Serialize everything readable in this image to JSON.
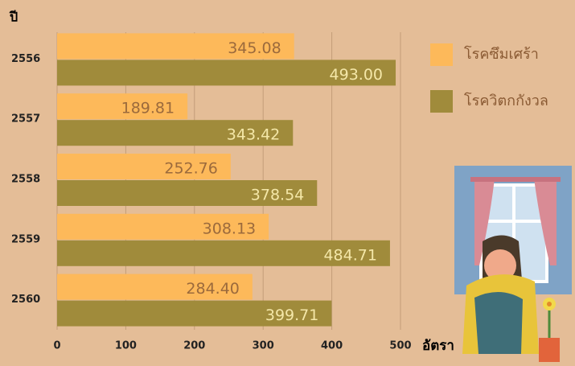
{
  "chart_data": {
    "type": "bar",
    "orientation": "horizontal",
    "y_label": "ปี",
    "x_label": "อัตรา",
    "categories": [
      "2556",
      "2557",
      "2558",
      "2559",
      "2560"
    ],
    "series": [
      {
        "name": "โรคซึมเศร้า",
        "color": "#fdb95a",
        "values": [
          345.08,
          189.81,
          252.76,
          308.13,
          284.4
        ],
        "value_labels": [
          "345.08",
          "189.81",
          "252.76",
          "308.13",
          "284.40"
        ]
      },
      {
        "name": "โรควิตกกังวล",
        "color": "#a08b3b",
        "values": [
          493.0,
          343.42,
          378.54,
          484.71,
          399.71
        ],
        "value_labels": [
          "493.00",
          "343.42",
          "378.54",
          "484.71",
          "399.71"
        ]
      }
    ],
    "xlim": [
      0,
      500
    ],
    "xticks": [
      0,
      100,
      200,
      300,
      400,
      500
    ],
    "grid": true
  }
}
